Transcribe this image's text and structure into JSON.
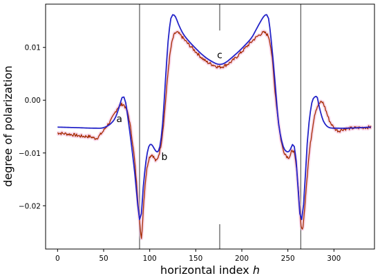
{
  "chart_data": {
    "type": "line",
    "title": "",
    "xlabel": "horizontal index",
    "xlabel_var": "h",
    "ylabel": "degree of polarization",
    "xlim": [
      -13,
      344
    ],
    "ylim": [
      -0.0282,
      0.0182
    ],
    "xticks": [
      0,
      50,
      100,
      150,
      200,
      250,
      300
    ],
    "xtick_labels": [
      "0",
      "50",
      "100",
      "150",
      "200",
      "250",
      "300"
    ],
    "yticks": [
      0.01,
      0.0,
      -0.01,
      -0.02
    ],
    "ytick_labels": [
      "0.01",
      "0.00",
      "−0.01",
      "−0.02"
    ],
    "grid": false,
    "legend": "none",
    "vertical_lines": [
      {
        "x": 89,
        "style": "full"
      },
      {
        "x": 176,
        "style": "partial",
        "segments": [
          [
            0.0132,
            0.0182
          ],
          [
            -0.0282,
            -0.0235
          ]
        ]
      },
      {
        "x": 264,
        "style": "full"
      }
    ],
    "annotations": [
      {
        "text": "a",
        "x": 67,
        "y": -0.0035
      },
      {
        "text": "b",
        "x": 116,
        "y": -0.0107
      },
      {
        "text": "c",
        "x": 176,
        "y": 0.0086
      }
    ],
    "series": [
      {
        "color": "#2323c8",
        "style": "smooth",
        "x": [
          0,
          20,
          40,
          50,
          58,
          63,
          67,
          70,
          72,
          74,
          77,
          80,
          84,
          87,
          89,
          91,
          93,
          96,
          99,
          102,
          105,
          108,
          111,
          114,
          117,
          120,
          123,
          125,
          128,
          131,
          135,
          140,
          150,
          160,
          170,
          176,
          182,
          190,
          200,
          210,
          215,
          220,
          224,
          227,
          229,
          232,
          236,
          240,
          245,
          250,
          253,
          255,
          257,
          259,
          261,
          263,
          265,
          267,
          269,
          271,
          273,
          276,
          279,
          282,
          284,
          287,
          290,
          295,
          305,
          315,
          330,
          340
        ],
        "y": [
          -0.0051,
          -0.0052,
          -0.0053,
          -0.0052,
          -0.0044,
          -0.0032,
          -0.0012,
          0.0005,
          0.0006,
          -0.0005,
          -0.0042,
          -0.0082,
          -0.0142,
          -0.0198,
          -0.0226,
          -0.0215,
          -0.0165,
          -0.0115,
          -0.0088,
          -0.0084,
          -0.0092,
          -0.0098,
          -0.0088,
          -0.0045,
          0.0035,
          0.0112,
          0.0155,
          0.0162,
          0.0158,
          0.0145,
          0.013,
          0.0117,
          0.0098,
          0.0082,
          0.0071,
          0.0068,
          0.0071,
          0.0082,
          0.0098,
          0.0117,
          0.0132,
          0.0148,
          0.0159,
          0.0162,
          0.0155,
          0.0112,
          0.0035,
          -0.0045,
          -0.0088,
          -0.0098,
          -0.0092,
          -0.0084,
          -0.0088,
          -0.0115,
          -0.0165,
          -0.0215,
          -0.0226,
          -0.0198,
          -0.0142,
          -0.0082,
          -0.0042,
          -0.0005,
          0.0006,
          0.0005,
          -0.0012,
          -0.0032,
          -0.0044,
          -0.0052,
          -0.0053,
          -0.0053,
          -0.0052,
          -0.0051
        ]
      },
      {
        "color": "#a52a00",
        "style": "noisy",
        "x": [
          0,
          15,
          25,
          35,
          42,
          48,
          53,
          58,
          62,
          65,
          68,
          71,
          74,
          77,
          80,
          83,
          85,
          87,
          89,
          91,
          93,
          95,
          97,
          99,
          101,
          103,
          105,
          107,
          109,
          112,
          115,
          118,
          121,
          124,
          127,
          130,
          134,
          140,
          150,
          160,
          170,
          176,
          182,
          190,
          200,
          210,
          215,
          220,
          224,
          227,
          230,
          233,
          236,
          240,
          244,
          248,
          251,
          253,
          255,
          257,
          259,
          261,
          263,
          265,
          267,
          269,
          271,
          273,
          276,
          279,
          282,
          285,
          288,
          291,
          295,
          300,
          305,
          310,
          320,
          330,
          340
        ],
        "y": [
          -0.0062,
          -0.0065,
          -0.0068,
          -0.0069,
          -0.0072,
          -0.0062,
          -0.005,
          -0.0038,
          -0.0025,
          -0.0015,
          -0.001,
          -0.0008,
          -0.0015,
          -0.003,
          -0.0062,
          -0.0104,
          -0.0142,
          -0.0185,
          -0.0228,
          -0.026,
          -0.0208,
          -0.016,
          -0.013,
          -0.0112,
          -0.0105,
          -0.0104,
          -0.011,
          -0.0115,
          -0.0108,
          -0.0087,
          -0.0045,
          0.0015,
          0.0072,
          0.0108,
          0.0125,
          0.0128,
          0.0122,
          0.011,
          0.0092,
          0.0075,
          0.0066,
          0.0063,
          0.0066,
          0.0075,
          0.0092,
          0.011,
          0.0118,
          0.0125,
          0.0128,
          0.0125,
          0.0115,
          0.0078,
          0.0018,
          -0.0045,
          -0.0088,
          -0.0104,
          -0.0108,
          -0.0103,
          -0.0095,
          -0.0102,
          -0.0125,
          -0.016,
          -0.0208,
          -0.0245,
          -0.023,
          -0.0185,
          -0.0142,
          -0.0104,
          -0.0062,
          -0.0028,
          -0.0012,
          -0.0005,
          -0.0005,
          -0.0018,
          -0.0038,
          -0.0052,
          -0.0058,
          -0.0055,
          -0.0053,
          -0.0052,
          -0.0051
        ]
      }
    ]
  }
}
